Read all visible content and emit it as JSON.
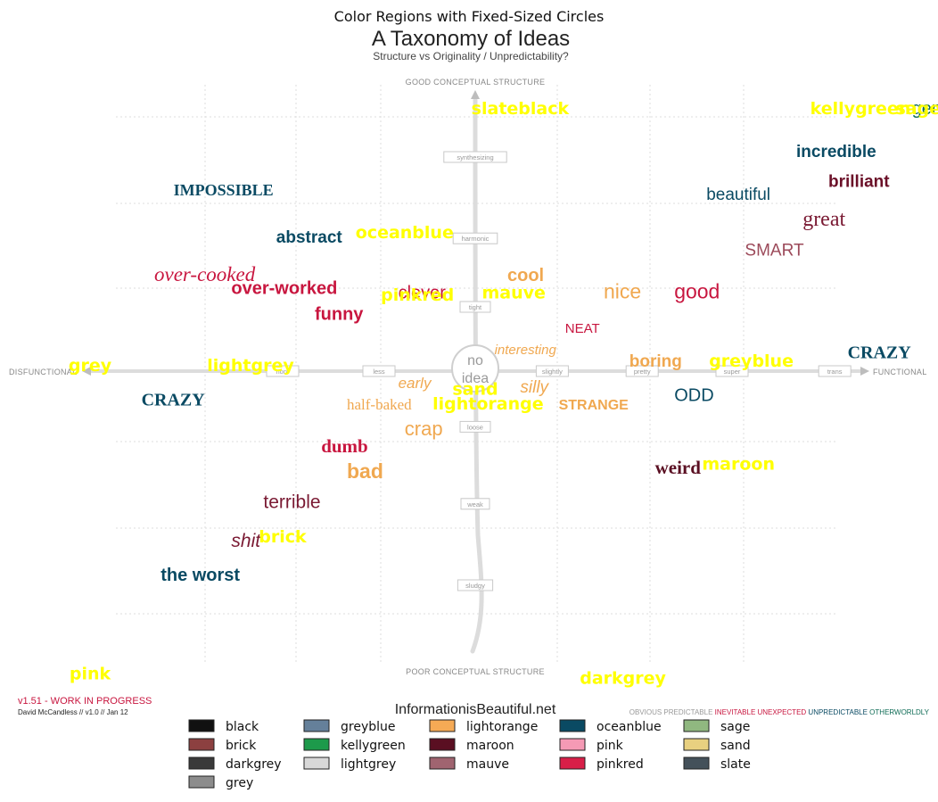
{
  "chart_data": {
    "type": "scatter",
    "title": "Color Regions with Fixed-Sized Circles",
    "image": {
      "title": "A Taxonomy of Ideas",
      "subtitle": "Structure vs Originality / Unpredictability?",
      "top_label": "GOOD CONCEPTUAL STRUCTURE",
      "bottom_label": "POOR CONCEPTUAL STRUCTURE",
      "left_label": "DISFUNCTIONAL",
      "right_label": "FUNCTIONAL",
      "center_label": [
        "no",
        "idea"
      ],
      "x_ticks": [
        {
          "label": "non-",
          "x": -3
        },
        {
          "label": "less",
          "x": -1.5
        },
        {
          "label": "slightly",
          "x": 1.2
        },
        {
          "label": "pretty",
          "x": 2.6
        },
        {
          "label": "super",
          "x": 4.0
        },
        {
          "label": "trans",
          "x": 5.6
        }
      ],
      "y_ticks": [
        {
          "label": "synthesizing",
          "y": 5
        },
        {
          "label": "harmonic",
          "y": 3.1
        },
        {
          "label": "tight",
          "y": 1.5
        },
        {
          "label": "loose",
          "y": -1.3
        },
        {
          "label": "weak",
          "y": -3.1
        },
        {
          "label": "sludgy",
          "y": -5
        }
      ],
      "words": [
        {
          "text": "genius",
          "x": 6.8,
          "y": 6.0,
          "color": "#0e6b55",
          "size": 20
        },
        {
          "text": "incredible",
          "x": 5.0,
          "y": 5.0,
          "color": "#0a4a63",
          "size": 19,
          "weight": "bold"
        },
        {
          "text": "brilliant",
          "x": 5.5,
          "y": 4.3,
          "color": "#6b1028",
          "size": 19,
          "weight": "bold"
        },
        {
          "text": "beautiful",
          "x": 3.6,
          "y": 4.0,
          "color": "#0a4a63",
          "size": 19
        },
        {
          "text": "great",
          "x": 5.1,
          "y": 3.4,
          "color": "#7a1a33",
          "size": 24,
          "family": "serif"
        },
        {
          "text": "SMART",
          "x": 4.2,
          "y": 2.7,
          "color": "#9c4a5a",
          "size": 19
        },
        {
          "text": "IMPOSSIBLE",
          "x": -4.7,
          "y": 4.1,
          "color": "#0a4a63",
          "size": 18,
          "weight": "bold",
          "family": "serif"
        },
        {
          "text": "abstract",
          "x": -3.1,
          "y": 3.0,
          "color": "#0a4a63",
          "size": 19,
          "weight": "bold"
        },
        {
          "text": "over-cooked",
          "x": -5.0,
          "y": 2.1,
          "color": "#c8163f",
          "size": 23,
          "family": "serif",
          "style": "italic"
        },
        {
          "text": "over-worked",
          "x": -3.8,
          "y": 1.8,
          "color": "#c8163f",
          "size": 20,
          "weight": "bold"
        },
        {
          "text": "funny",
          "x": -2.5,
          "y": 1.2,
          "color": "#c8163f",
          "size": 20,
          "weight": "bold"
        },
        {
          "text": "clever",
          "x": -1.2,
          "y": 1.7,
          "color": "#c8163f",
          "size": 20
        },
        {
          "text": "cool",
          "x": 0.5,
          "y": 2.1,
          "color": "#f0a850",
          "size": 20,
          "weight": "bold"
        },
        {
          "text": "nice",
          "x": 2.0,
          "y": 1.7,
          "color": "#f0a850",
          "size": 23
        },
        {
          "text": "good",
          "x": 3.1,
          "y": 1.7,
          "color": "#c8163f",
          "size": 23
        },
        {
          "text": "NEAT",
          "x": 1.4,
          "y": 0.9,
          "color": "#c8163f",
          "size": 15
        },
        {
          "text": "interesting",
          "x": 0.3,
          "y": 0.4,
          "color": "#f0a850",
          "size": 15,
          "style": "italic"
        },
        {
          "text": "boring",
          "x": 2.4,
          "y": 0.1,
          "color": "#f0a850",
          "size": 19,
          "weight": "bold"
        },
        {
          "text": "CRAZY",
          "x": 5.8,
          "y": 0.3,
          "color": "#0a4a63",
          "size": 20,
          "weight": "bold",
          "family": "serif"
        },
        {
          "text": "CRAZY",
          "x": -5.2,
          "y": -0.8,
          "color": "#0a4a63",
          "size": 20,
          "weight": "bold",
          "family": "serif"
        },
        {
          "text": "early",
          "x": -1.2,
          "y": -0.4,
          "color": "#f0a850",
          "size": 17,
          "style": "italic"
        },
        {
          "text": "silly",
          "x": 0.7,
          "y": -0.5,
          "color": "#f0a850",
          "size": 19,
          "style": "italic"
        },
        {
          "text": "half-baked",
          "x": -2.0,
          "y": -0.9,
          "color": "#f0a850",
          "size": 17,
          "family": "serif"
        },
        {
          "text": "STRANGE",
          "x": 1.3,
          "y": -0.9,
          "color": "#f0a850",
          "size": 16,
          "weight": "bold"
        },
        {
          "text": "ODD",
          "x": 3.1,
          "y": -0.7,
          "color": "#0a4a63",
          "size": 20
        },
        {
          "text": "crap",
          "x": -1.1,
          "y": -1.5,
          "color": "#f0a850",
          "size": 22
        },
        {
          "text": "dumb",
          "x": -2.4,
          "y": -1.9,
          "color": "#c8163f",
          "size": 21,
          "weight": "bold",
          "family": "serif"
        },
        {
          "text": "bad",
          "x": -2.0,
          "y": -2.5,
          "color": "#f0a850",
          "size": 23,
          "weight": "bold"
        },
        {
          "text": "weird",
          "x": 2.8,
          "y": -2.4,
          "color": "#5a0f22",
          "size": 21,
          "weight": "bold",
          "family": "serif"
        },
        {
          "text": "terrible",
          "x": -3.3,
          "y": -3.2,
          "color": "#7a1a33",
          "size": 21
        },
        {
          "text": "shit",
          "x": -3.8,
          "y": -4.1,
          "color": "#7a1a33",
          "size": 21,
          "style": "italic"
        },
        {
          "text": "the worst",
          "x": -4.9,
          "y": -4.9,
          "color": "#0a4a63",
          "size": 20,
          "weight": "bold"
        }
      ],
      "credit_left_1": "v1.51 - WORK IN PROGRESS",
      "credit_left_2": "David McCandless // v1.0 // Jan 12",
      "credit_center": "InformationisBeautiful.net",
      "credit_right": [
        {
          "text": "OBVIOUS",
          "color": "#999999"
        },
        {
          "text": "PREDICTABLE",
          "color": "#999999"
        },
        {
          "text": "INEVITABLE",
          "color": "#c8163f"
        },
        {
          "text": "UNEXPECTED",
          "color": "#c8163f"
        },
        {
          "text": "UNPREDICTABLE",
          "color": "#0a4a63"
        },
        {
          "text": "OTHERWORLDLY",
          "color": "#0e6b55"
        }
      ]
    },
    "region_labels": [
      {
        "text": "slateblack",
        "x": 0.7,
        "y": 6.0
      },
      {
        "text": "kellygreen",
        "x": 6.0,
        "y": 6.0
      },
      {
        "text": "sage",
        "x": 6.9,
        "y": 6.0
      },
      {
        "text": "oceanblue",
        "x": -1.1,
        "y": 3.1
      },
      {
        "text": "pinkred",
        "x": -0.9,
        "y": 1.65
      },
      {
        "text": "mauve",
        "x": 0.6,
        "y": 1.7
      },
      {
        "text": "greyblue",
        "x": 4.3,
        "y": 0.1
      },
      {
        "text": "grey",
        "x": -6.0,
        "y": 0.0
      },
      {
        "text": "lightgrey",
        "x": -3.5,
        "y": 0.0
      },
      {
        "text": "sand",
        "x": 0.0,
        "y": -0.55
      },
      {
        "text": "lightorange",
        "x": 0.2,
        "y": -0.9
      },
      {
        "text": "maroon",
        "x": 4.1,
        "y": -2.3
      },
      {
        "text": "brick",
        "x": -3.0,
        "y": -4.0
      },
      {
        "text": "pink",
        "x": -6.0,
        "y": -7.2
      },
      {
        "text": "darkgrey",
        "x": 2.3,
        "y": -7.3
      }
    ],
    "legend": {
      "placement": "bottom",
      "columns": [
        [
          {
            "name": "black",
            "color": "#111111"
          },
          {
            "name": "brick",
            "color": "#8c4040"
          },
          {
            "name": "darkgrey",
            "color": "#3a3a3a"
          },
          {
            "name": "grey",
            "color": "#8c8c8c"
          }
        ],
        [
          {
            "name": "greyblue",
            "color": "#65809a"
          },
          {
            "name": "kellygreen",
            "color": "#1d9a4b"
          },
          {
            "name": "lightgrey",
            "color": "#d8d8d8"
          }
        ],
        [
          {
            "name": "lightorange",
            "color": "#f5aa55"
          },
          {
            "name": "maroon",
            "color": "#5a0f22"
          },
          {
            "name": "mauve",
            "color": "#a06470"
          }
        ],
        [
          {
            "name": "oceanblue",
            "color": "#0a4a63"
          },
          {
            "name": "pink",
            "color": "#f59ab5"
          },
          {
            "name": "pinkred",
            "color": "#d81f48"
          }
        ],
        [
          {
            "name": "sage",
            "color": "#90b880"
          },
          {
            "name": "sand",
            "color": "#e8d080"
          },
          {
            "name": "slate",
            "color": "#44515a"
          }
        ]
      ]
    },
    "grid": true
  }
}
